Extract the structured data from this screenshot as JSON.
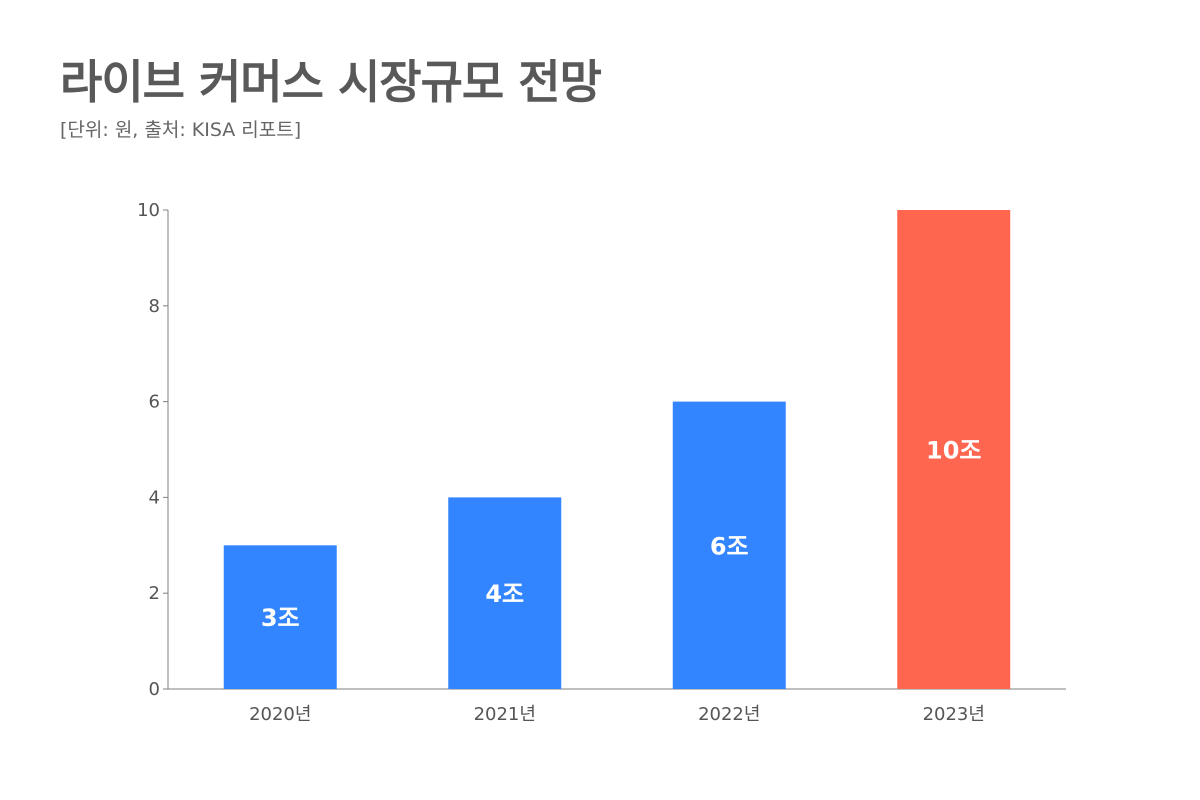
{
  "title": "라이브 커머스 시장규모 전망",
  "subtitle": "[단위: 원, 출처: KISA 리포트]",
  "chart_data": {
    "type": "bar",
    "categories": [
      "2020년",
      "2021년",
      "2022년",
      "2023년"
    ],
    "values": [
      3,
      4,
      6,
      10
    ],
    "data_labels": [
      "3조",
      "4조",
      "6조",
      "10조"
    ],
    "bar_colors": [
      "#3385FF",
      "#3385FF",
      "#3385FF",
      "#FF6650"
    ],
    "ylim": [
      0,
      10
    ],
    "yticks": [
      0,
      2,
      4,
      6,
      8,
      10
    ],
    "grid": false,
    "legend": "none"
  }
}
